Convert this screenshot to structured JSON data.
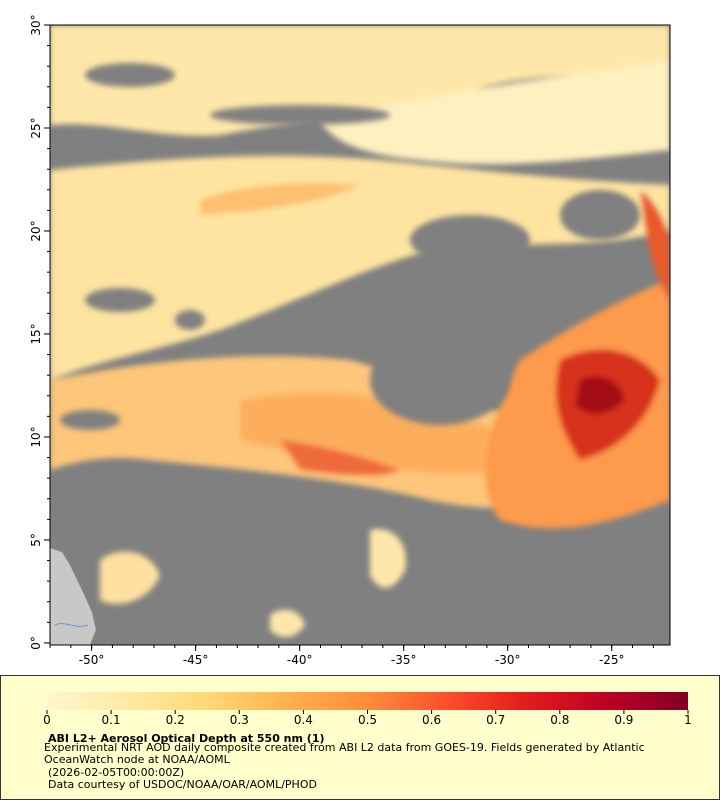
{
  "map": {
    "type": "map",
    "xlim": [
      -52,
      -22.2
    ],
    "ylim": [
      -0.1,
      30
    ],
    "xticks": [
      {
        "value": -50,
        "label": "-50°"
      },
      {
        "value": -45,
        "label": "-45°"
      },
      {
        "value": -40,
        "label": "-40°"
      },
      {
        "value": -35,
        "label": "-35°"
      },
      {
        "value": -30,
        "label": "-30°"
      },
      {
        "value": -25,
        "label": "-25°"
      }
    ],
    "yticks": [
      {
        "value": 0,
        "label": "0°"
      },
      {
        "value": 5,
        "label": "5°"
      },
      {
        "value": 10,
        "label": "10°"
      },
      {
        "value": 15,
        "label": "15°"
      },
      {
        "value": 20,
        "label": "20°"
      },
      {
        "value": 25,
        "label": "25°"
      },
      {
        "value": 30,
        "label": "30°"
      }
    ],
    "colorbar": {
      "clim": [
        0,
        1
      ],
      "ticks": [
        0,
        0.1,
        0.2,
        0.3,
        0.4,
        0.5,
        0.6,
        0.7,
        0.8,
        0.9,
        1
      ],
      "colormap": [
        "#fff6cc",
        "#ffeaa4",
        "#fed976",
        "#feb24c",
        "#fd8d3c",
        "#fc4e2a",
        "#e31a1c",
        "#bd0026",
        "#800026"
      ]
    },
    "title": "ABI L2+ Aerosol Optical Depth at 550 nm (1)",
    "description": "Experimental NRT AOD daily composite created from ABI L2 data from GOES-19. Fields generated by Atlantic OceanWatch node at NOAA/AOML",
    "timestamp": "(2026-02-05T00:00:00Z)",
    "credit": "Data courtesy of USDOC/NOAA/OAR/AOML/PHOD"
  }
}
